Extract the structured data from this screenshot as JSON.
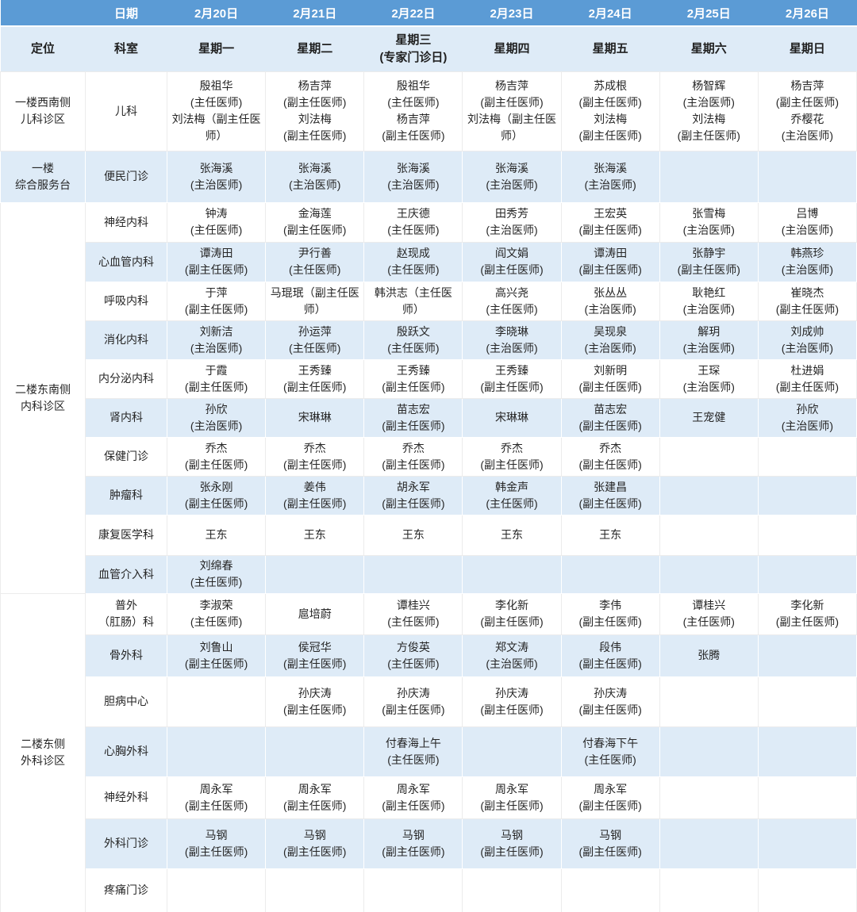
{
  "colors": {
    "header_blue": "#5b9bd5",
    "stripe_light_blue": "#deebf7",
    "header_text": "#ffffff",
    "body_text": "#262626"
  },
  "table": {
    "header_row_1": {
      "corner": "",
      "date_label": "日期",
      "dates": [
        "2月20日",
        "2月21日",
        "2月22日",
        "2月23日",
        "2月24日",
        "2月25日",
        "2月26日"
      ]
    },
    "header_row_2": {
      "location_label": "定位",
      "dept_label": "科室",
      "weekdays": [
        "星期一",
        "星期二",
        "星期三\n(专家门诊日)",
        "星期四",
        "星期五",
        "星期六",
        "星期日"
      ]
    },
    "rows": [
      {
        "location": {
          "label": "一楼西南侧\n儿科诊区",
          "rowspan": 1
        },
        "dept": "儿科",
        "cells": [
          "殷祖华\n(主任医师)\n刘法梅（副主任医师）",
          "杨吉萍\n(副主任医师)\n刘法梅\n(副主任医师)",
          "殷祖华\n(主任医师)\n杨吉萍\n(副主任医师)",
          "杨吉萍\n(副主任医师)\n刘法梅（副主任医师）",
          "苏成根\n(副主任医师)\n刘法梅\n(副主任医师)",
          "杨智辉\n(主治医师)\n刘法梅\n(副主任医师)",
          "杨吉萍\n(副主任医师)\n乔樱花\n(主治医师)"
        ]
      },
      {
        "location": {
          "label": "一楼\n综合服务台",
          "rowspan": 1
        },
        "dept": "便民门诊",
        "cells": [
          "张海溪\n(主治医师)",
          "张海溪\n(主治医师)",
          "张海溪\n(主治医师)",
          "张海溪\n(主治医师)",
          "张海溪\n(主治医师)",
          "",
          ""
        ]
      },
      {
        "location": {
          "label": "二楼东南侧\n内科诊区",
          "rowspan": 10
        },
        "dept": "神经内科",
        "cells": [
          "钟涛\n(主任医师)",
          "金海莲\n(副主任医师)",
          "王庆德\n(主任医师)",
          "田秀芳\n(主治医师)",
          "王宏英\n(副主任医师)",
          "张雪梅\n(主治医师)",
          "吕博\n(主治医师)"
        ]
      },
      {
        "dept": "心血管内科",
        "cells": [
          "谭涛田\n(副主任医师)",
          "尹行善\n(主任医师)",
          "赵现成\n(主任医师)",
          "阎文娟\n(副主任医师)",
          "谭涛田\n(副主任医师)",
          "张静宇\n(副主任医师)",
          "韩燕珍\n(主治医师)"
        ]
      },
      {
        "dept": "呼吸内科",
        "cells": [
          "于萍\n(副主任医师)",
          "马琨珉（副主任医师）",
          "韩洪志（主任医师）",
          "高兴尧\n(主任医师)",
          "张丛丛\n(主治医师)",
          "耿艳红\n(主治医师)",
          "崔晓杰\n(副主任医师)"
        ]
      },
      {
        "dept": "消化内科",
        "cells": [
          "刘新洁\n(主治医师)",
          "孙运萍\n(主任医师)",
          "殷跃文\n(主任医师)",
          "李晓琳\n(主治医师)",
          "吴现泉\n(主治医师)",
          "解玥\n(主治医师)",
          "刘成帅\n(主治医师)"
        ]
      },
      {
        "dept": "内分泌内科",
        "cells": [
          "于霞\n(副主任医师)",
          "王秀臻\n(副主任医师)",
          "王秀臻\n(副主任医师)",
          "王秀臻\n(副主任医师)",
          "刘新明\n(副主任医师)",
          "王琛\n(主治医师)",
          "杜进娟\n(副主任医师)"
        ]
      },
      {
        "dept": "肾内科",
        "cells": [
          "孙欣\n(主治医师)",
          "宋琳琳",
          "苗志宏\n(副主任医师)",
          "宋琳琳",
          "苗志宏\n(副主任医师)",
          "王宠健",
          "孙欣\n(主治医师)"
        ]
      },
      {
        "dept": "保健门诊",
        "cells": [
          "乔杰\n(副主任医师)",
          "乔杰\n(副主任医师)",
          "乔杰\n(副主任医师)",
          "乔杰\n(副主任医师)",
          "乔杰\n(副主任医师)",
          "",
          ""
        ]
      },
      {
        "dept": "肿瘤科",
        "cells": [
          "张永刚\n(副主任医师)",
          "姜伟\n(副主任医师)",
          "胡永军\n(副主任医师)",
          "韩金声\n(主任医师)",
          "张建昌\n(副主任医师)",
          "",
          ""
        ]
      },
      {
        "dept": "康复医学科",
        "cells": [
          "王东",
          "王东",
          "王东",
          "王东",
          "王东",
          "",
          ""
        ]
      },
      {
        "dept": "血管介入科",
        "cells": [
          "刘绵春\n(主任医师)",
          "",
          "",
          "",
          "",
          "",
          ""
        ]
      },
      {
        "location": {
          "label": "二楼东侧\n外科诊区",
          "rowspan": 7
        },
        "dept": "普外\n（肛肠）科",
        "cells": [
          "李淑荣\n(主任医师)",
          "扈培蔚",
          "谭桂兴\n(主任医师)",
          "李化新\n(副主任医师)",
          "李伟\n(副主任医师)",
          "谭桂兴\n(主任医师)",
          "李化新\n(副主任医师)"
        ]
      },
      {
        "dept": "骨外科",
        "cells": [
          "刘鲁山\n(副主任医师)",
          "侯冠华\n(副主任医师)",
          "方俊英\n(主任医师)",
          "郑文涛\n(主治医师)",
          "段伟\n(副主任医师)",
          "张腾",
          ""
        ]
      },
      {
        "dept": "胆病中心",
        "cells": [
          "",
          "孙庆涛\n(副主任医师)",
          "孙庆涛\n(副主任医师)",
          "孙庆涛\n(副主任医师)",
          "孙庆涛\n(副主任医师)",
          "",
          ""
        ]
      },
      {
        "dept": "心胸外科",
        "cells": [
          "",
          "",
          "付春海上午\n(主任医师)",
          "",
          "付春海下午\n(主任医师)",
          "",
          ""
        ]
      },
      {
        "dept": "神经外科",
        "cells": [
          "周永军\n(副主任医师)",
          "周永军\n(副主任医师)",
          "周永军\n(副主任医师)",
          "周永军\n(副主任医师)",
          "周永军\n(副主任医师)",
          "",
          ""
        ]
      },
      {
        "dept": "外科门诊",
        "cells": [
          "马钢\n(副主任医师)",
          "马钢\n(副主任医师)",
          "马钢\n(副主任医师)",
          "马钢\n(副主任医师)",
          "马钢\n(副主任医师)",
          "",
          ""
        ]
      },
      {
        "dept": "疼痛门诊",
        "cells": [
          "",
          "",
          "",
          "",
          "",
          "",
          ""
        ]
      }
    ]
  }
}
